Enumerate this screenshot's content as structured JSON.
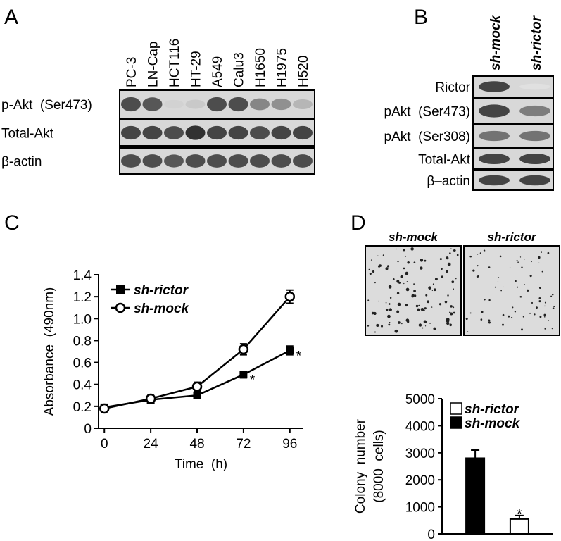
{
  "panel_a": {
    "label": "A",
    "lanes": [
      "PC-3",
      "LN-Cap",
      "HCT116",
      "HT-29",
      "A549",
      "Calu3",
      "H1650",
      "H1975",
      "H520"
    ],
    "rows": [
      "p-Akt  (Ser473)",
      "Total-Akt",
      "β-actin"
    ]
  },
  "panel_b": {
    "label": "B",
    "lanes": [
      "sh-mock",
      "sh-rictor"
    ],
    "rows": [
      "Rictor",
      "pAkt  (Ser473)",
      "pAkt  (Ser308)",
      "Total-Akt",
      "β–actin"
    ]
  },
  "panel_c": {
    "label": "C"
  },
  "panel_d": {
    "label": "D",
    "images": [
      "sh-mock",
      "sh-rictor"
    ]
  },
  "chart_data": [
    {
      "type": "line",
      "x_label": "Time  (h)",
      "y_label": "Absorbance  (490nm)",
      "x": [
        0,
        24,
        48,
        72,
        96
      ],
      "xlim": [
        -3,
        103
      ],
      "xticks": [
        0,
        24,
        48,
        72,
        96
      ],
      "ylim": [
        0,
        1.4
      ],
      "yticks": [
        0,
        0.2,
        0.4,
        0.6,
        0.8,
        {
          "value": 1,
          "label": "1.0"
        },
        1.2,
        1.4
      ],
      "legend": "upper left",
      "series": [
        {
          "name": "sh-rictor",
          "color": "#000000",
          "marker": "square",
          "values": [
            0.19,
            0.26,
            0.3,
            0.49,
            0.71
          ],
          "errors": [
            0.02,
            0.02,
            0.02,
            0.03,
            0.04
          ]
        },
        {
          "name": "sh-mock",
          "color": "#000000",
          "marker": "open-circle",
          "values": [
            0.18,
            0.27,
            0.38,
            0.72,
            1.2
          ],
          "errors": [
            0.02,
            0.03,
            0.04,
            0.05,
            0.06
          ]
        }
      ],
      "annotations": [
        {
          "text": "*",
          "series": 0,
          "index": 3
        },
        {
          "text": "*",
          "series": 0,
          "index": 4
        }
      ]
    },
    {
      "type": "bar",
      "y_label": [
        "Colony  number",
        "(8000  cells)"
      ],
      "categories": [
        null
      ],
      "ylim": [
        0,
        5000
      ],
      "yticks": [
        0,
        1000,
        2000,
        3000,
        4000,
        5000
      ],
      "legend": "upper left",
      "series": [
        {
          "name": "sh-rictor",
          "color": "#ffffff",
          "values": [
            550
          ],
          "errors": [
            130
          ]
        },
        {
          "name": "sh-mock",
          "color": "#000000",
          "values": [
            2800
          ],
          "errors": [
            300
          ]
        }
      ],
      "annotations": [
        {
          "text": "*",
          "series": 0,
          "index": 0
        }
      ]
    }
  ]
}
